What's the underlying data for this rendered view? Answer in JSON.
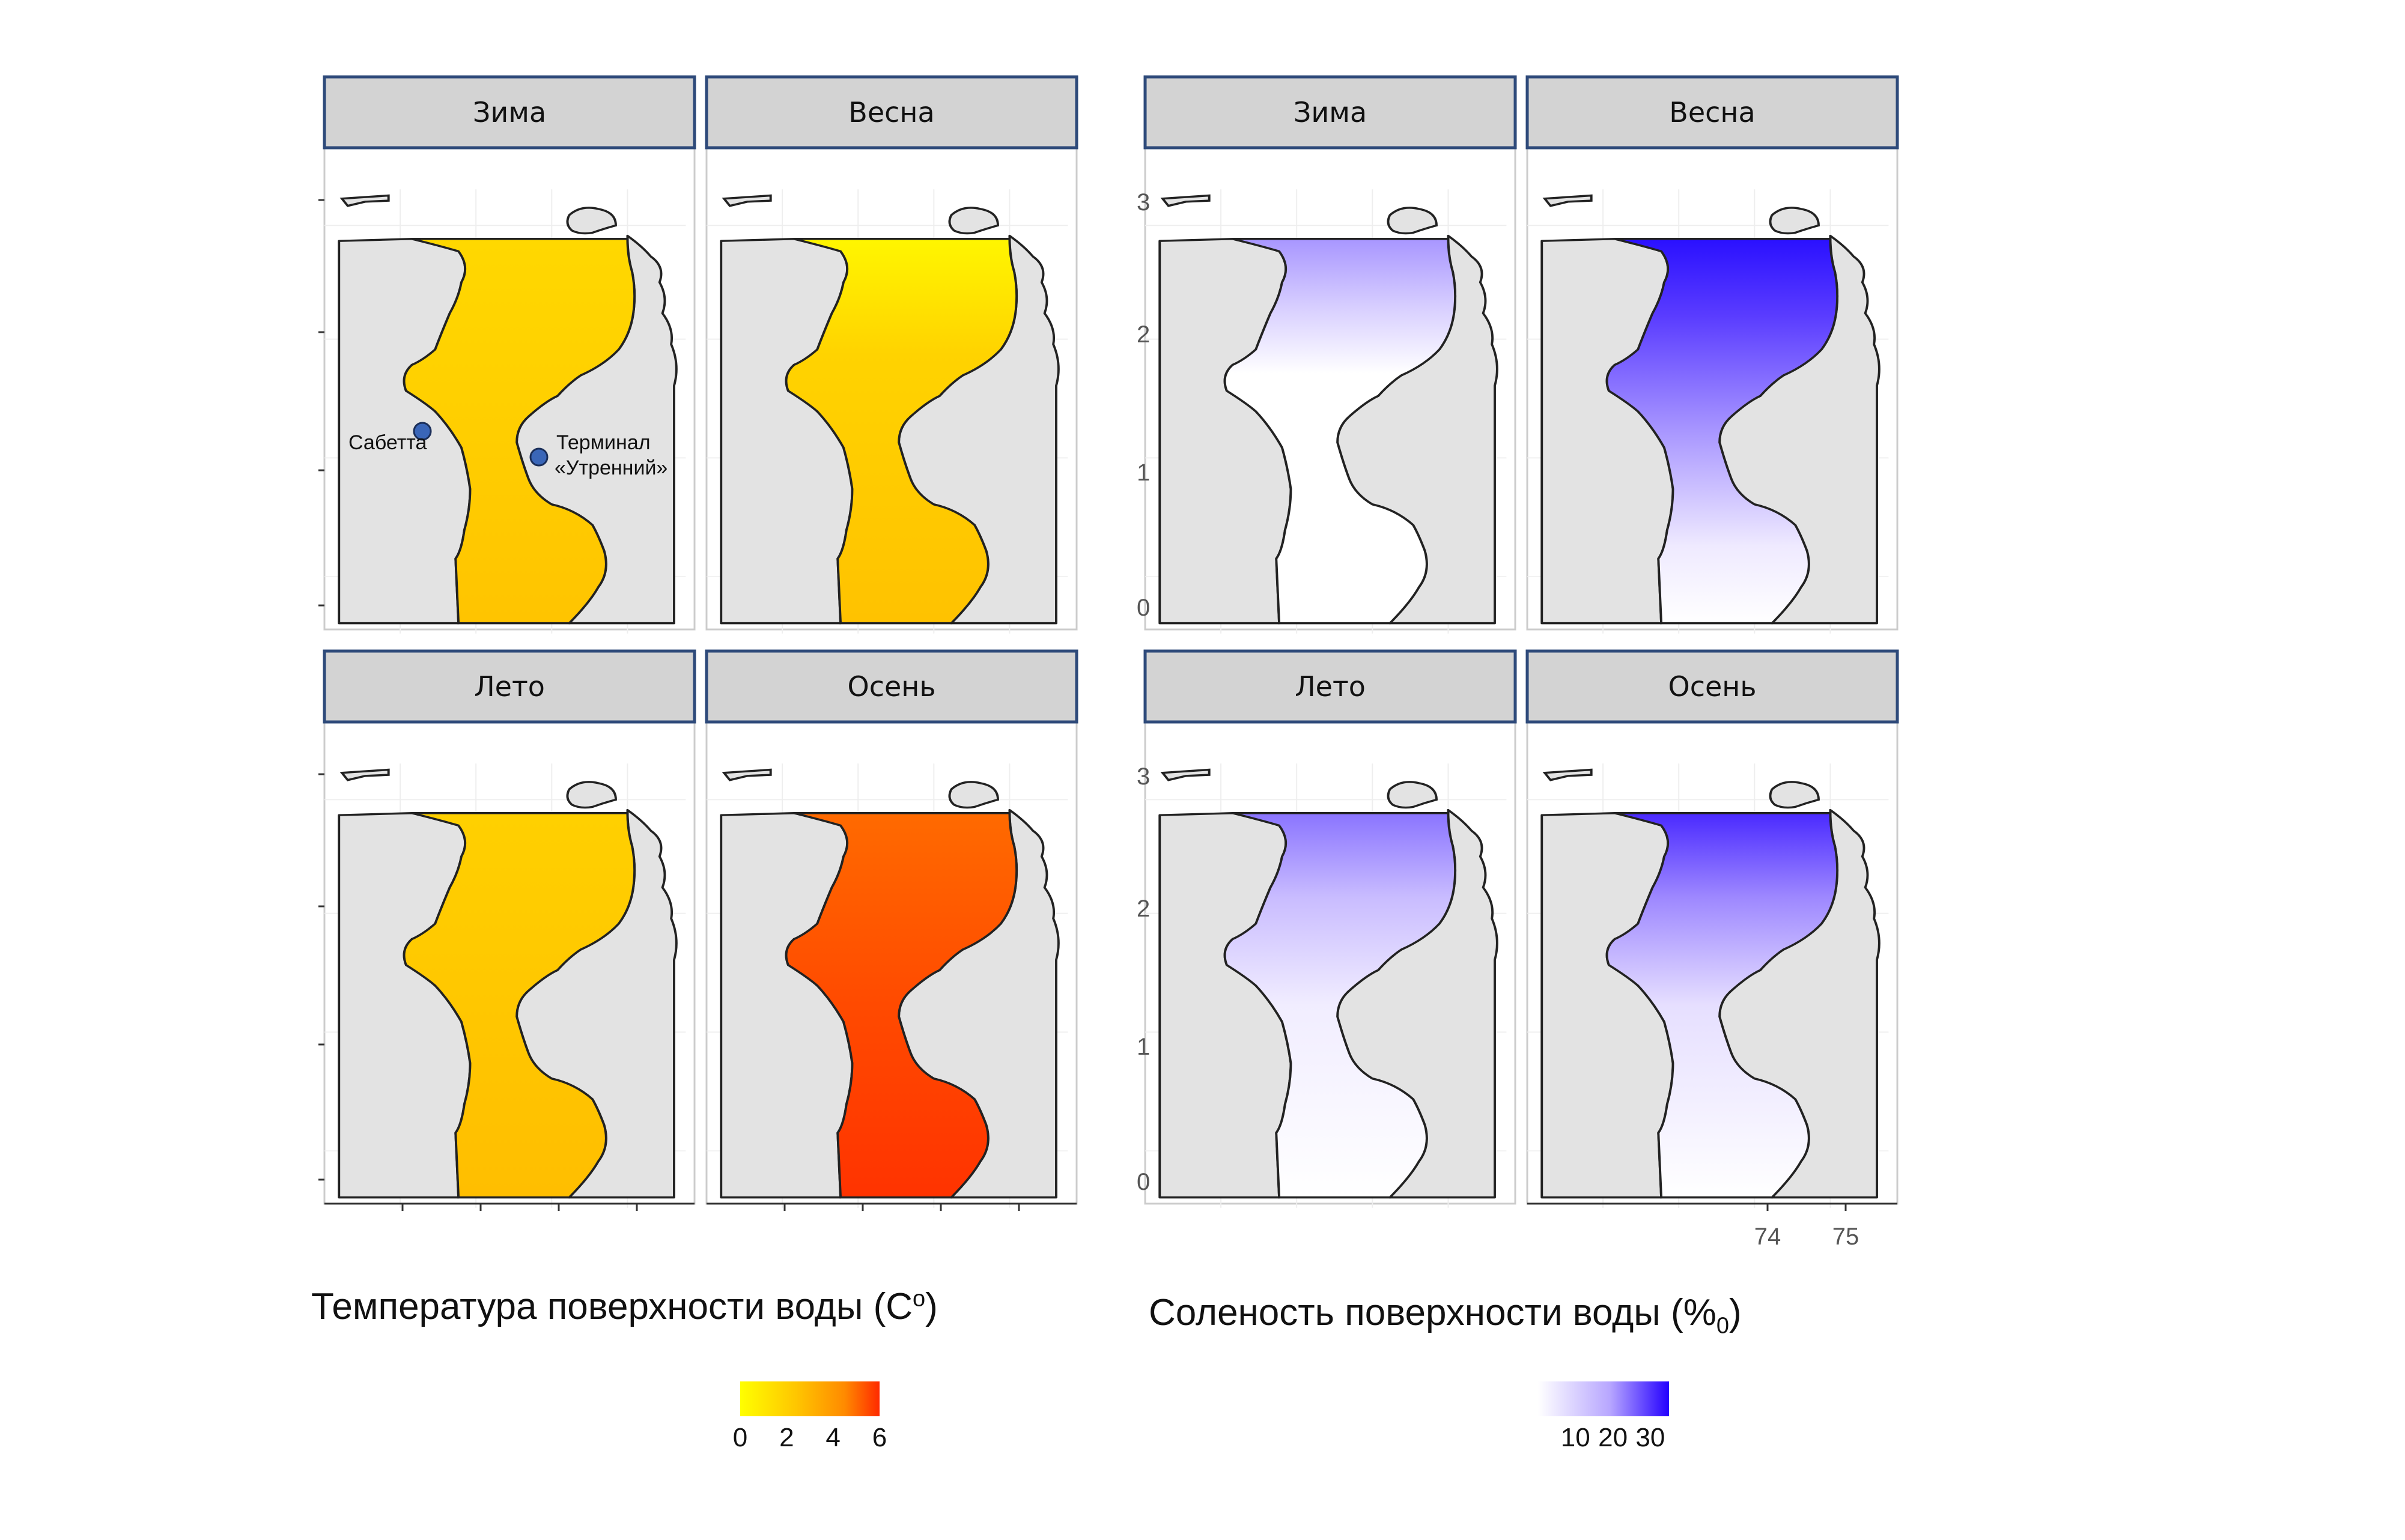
{
  "figure": {
    "temperature": {
      "caption": "Температура поверхности воды (С",
      "caption_sup": "о",
      "caption_close": ")",
      "colorbar": {
        "colors": [
          "#ffff00",
          "#ffc600",
          "#ff8a00",
          "#ff2a00"
        ],
        "ticks": [
          "0",
          "2",
          "4",
          "6"
        ],
        "range": [
          0,
          6
        ]
      },
      "panels": [
        {
          "season": "Зима",
          "fill": "temp-winter"
        },
        {
          "season": "Весна",
          "fill": "temp-spring"
        },
        {
          "season": "Лето",
          "fill": "temp-summer"
        },
        {
          "season": "Осень",
          "fill": "temp-autumn"
        }
      ],
      "annotations": [
        {
          "label": "Сабетта"
        },
        {
          "label": "Терминал",
          "label2": "«Утренний»"
        }
      ]
    },
    "salinity": {
      "caption": "Соленость поверхности воды (%",
      "caption_sub": "0",
      "caption_close": ")",
      "colorbar": {
        "colors": [
          "#ffffff",
          "#b7a6ff",
          "#2400ff"
        ],
        "ticks": [
          "10",
          "20",
          "30"
        ],
        "range": [
          0,
          35
        ]
      },
      "panels": [
        {
          "season": "Зима",
          "fill": "sal-winter"
        },
        {
          "season": "Весна",
          "fill": "sal-spring"
        },
        {
          "season": "Лето",
          "fill": "sal-summer"
        },
        {
          "season": "Осень",
          "fill": "sal-autumn"
        }
      ],
      "x_ticks": [
        "74",
        "75"
      ],
      "y_ticks_partial": [
        "3",
        "2",
        "1",
        "0"
      ]
    },
    "colors": {
      "land": "#e3e3e3",
      "coast": "#222222",
      "header_bg": "#d3d3d3",
      "header_border": "#2e4a7a",
      "marker": "#3a66b8"
    }
  }
}
